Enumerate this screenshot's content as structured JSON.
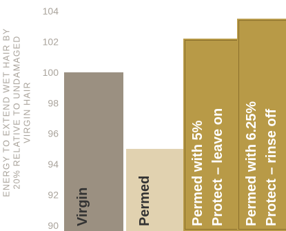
{
  "chart_data": {
    "type": "bar",
    "title": "",
    "xlabel": "",
    "ylabel_lines": [
      "ENERGY TO EXTEND WET HAIR BY",
      "20% RELATIVE TO UNDAMAGED",
      "VIRGIN HAIR"
    ],
    "ylim": [
      90,
      104
    ],
    "yticks": [
      "90",
      "92",
      "94",
      "96",
      "98",
      "100",
      "102",
      "104"
    ],
    "grid": false,
    "legend": "none",
    "bars": [
      {
        "label_lines": [
          "Virgin"
        ],
        "value": 100,
        "color": "#9b9081",
        "text_color": "#333333"
      },
      {
        "label_lines": [
          "Permed"
        ],
        "value": 95,
        "color": "#e1d2b0",
        "text_color": "#333333"
      },
      {
        "label_lines": [
          "Permed with 5%",
          "Protect – leave on"
        ],
        "value": 102.2,
        "color": "#b89a47",
        "text_color": "#ffffff"
      },
      {
        "label_lines": [
          "Permed with 6.25%",
          "Protect – rinse off"
        ],
        "value": 103.5,
        "color": "#b89a47",
        "text_color": "#ffffff"
      }
    ]
  }
}
